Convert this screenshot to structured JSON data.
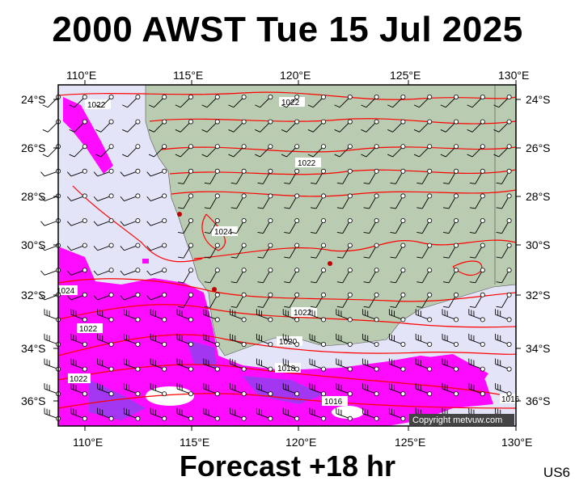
{
  "header": {
    "title": "2000 AWST Tue 15 Jul 2025"
  },
  "footer": {
    "forecast": "Forecast +18 hr",
    "code": "US6"
  },
  "map": {
    "lon_labels": [
      "110°E",
      "115°E",
      "120°E",
      "125°E",
      "130°E"
    ],
    "lat_labels": [
      "24°S",
      "26°S",
      "28°S",
      "30°S",
      "32°S",
      "34°S",
      "36°S"
    ],
    "isobar_labels": [
      "1022",
      "1022",
      "1022",
      "1024",
      "1024",
      "1022",
      "1022",
      "1020",
      "1018",
      "1016",
      "1016",
      "1022"
    ],
    "copyright": "Copyright metvuw.com"
  },
  "colors": {
    "sea": "#e4e4f8",
    "land": "#b9cbb0",
    "precip_light": "#ff00ff",
    "precip_heavy": "#9a3cf0",
    "isobar": "#ff0000"
  }
}
